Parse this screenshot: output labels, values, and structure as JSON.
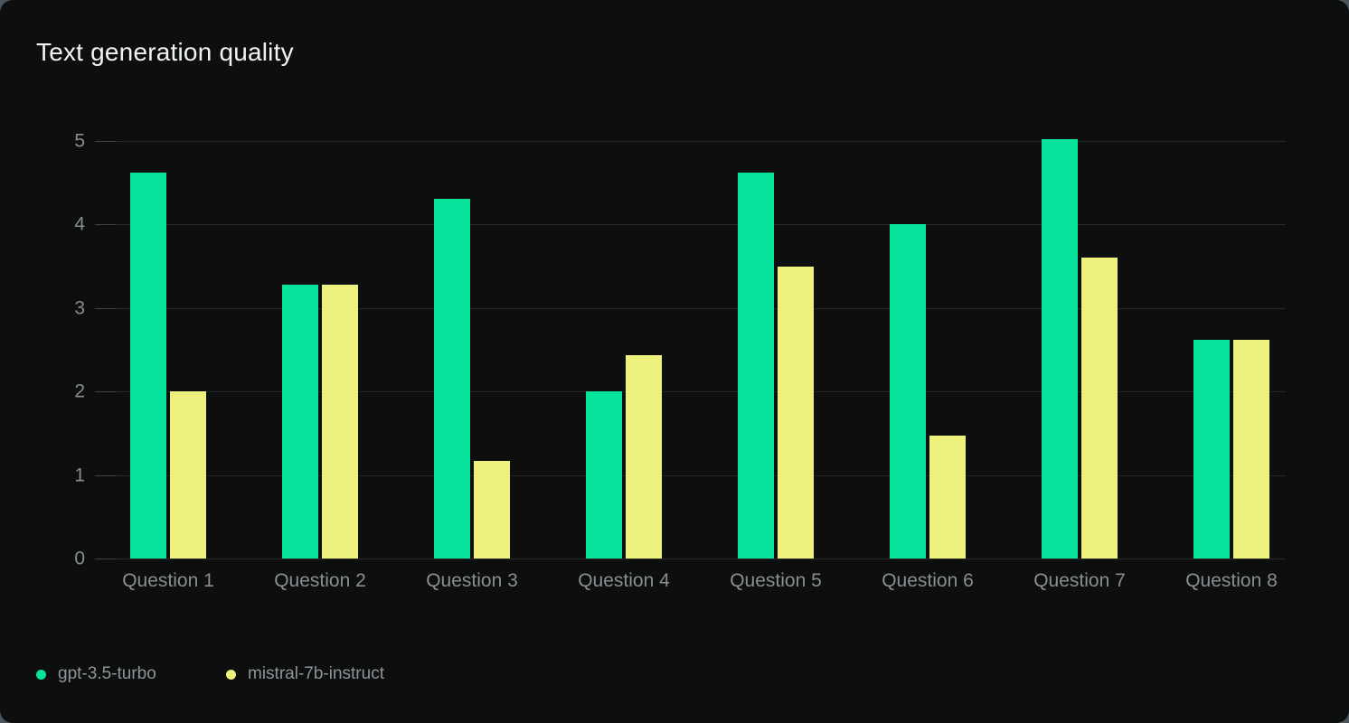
{
  "chart_data": {
    "type": "bar",
    "title": "Text generation quality",
    "categories": [
      "Question 1",
      "Question 2",
      "Question 3",
      "Question 4",
      "Question 5",
      "Question 6",
      "Question 7",
      "Question 8"
    ],
    "series": [
      {
        "name": "gpt-3.5-turbo",
        "color": "#05e39c",
        "values": [
          4.62,
          3.28,
          4.31,
          2.0,
          4.62,
          4.0,
          5.02,
          2.62
        ]
      },
      {
        "name": "mistral-7b-instruct",
        "color": "#eef17c",
        "values": [
          2.0,
          3.28,
          1.17,
          2.43,
          3.5,
          1.47,
          3.6,
          2.62
        ]
      }
    ],
    "xlabel": "",
    "ylabel": "",
    "ylim": [
      0,
      5
    ],
    "yticks": [
      0,
      1,
      2,
      3,
      4,
      5
    ],
    "grid": "horizontal",
    "legend_position": "bottom-left",
    "colors": {
      "card_background": "#0d0f0f",
      "page_background": "#4a555c",
      "gridline": "#262928",
      "axis_text": "#8a8d91",
      "title_text": "#f2f4f4",
      "legend_text": "#90939a"
    }
  }
}
